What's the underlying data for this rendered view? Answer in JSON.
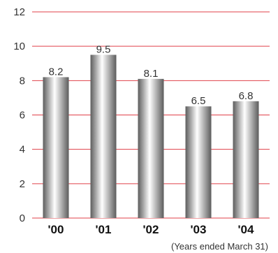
{
  "chart_data": {
    "type": "bar",
    "categories": [
      "'00",
      "'01",
      "'02",
      "'03",
      "'04"
    ],
    "values": [
      8.2,
      9.5,
      8.1,
      6.5,
      6.8
    ],
    "value_labels": [
      "8.2",
      "9.5",
      "8.1",
      "6.5",
      "6.8"
    ],
    "yticks": [
      0,
      2,
      4,
      6,
      8,
      10,
      12
    ],
    "ylim": [
      0,
      12
    ],
    "grid": true,
    "note": "(Years ended March 31)",
    "colors": {
      "grid": "#e0404a",
      "bar_dark": "#5c5c5c",
      "bar_light": "#ffffff"
    }
  }
}
